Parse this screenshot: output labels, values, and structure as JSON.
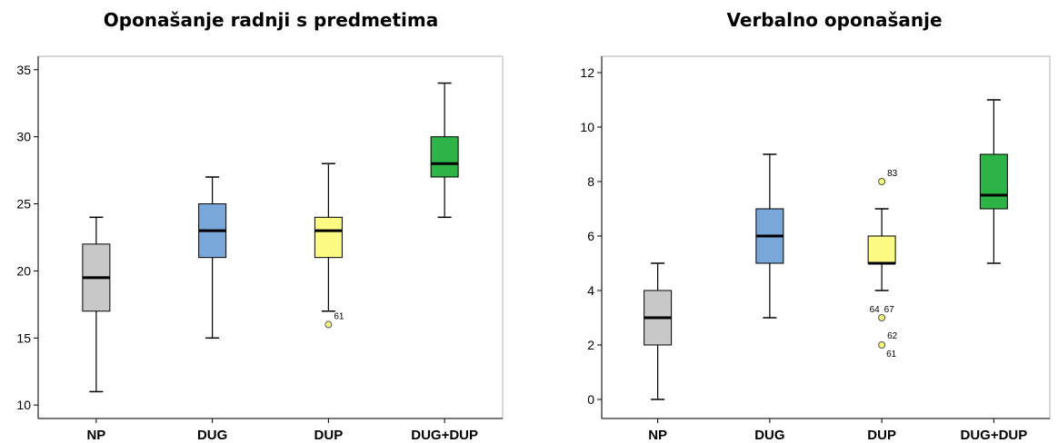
{
  "chart_data": [
    {
      "type": "boxplot",
      "title": "Oponašanje radnji s predmetima",
      "categories": [
        "NP",
        "DUG",
        "DUP",
        "DUG+DUP"
      ],
      "ylim": [
        9,
        36
      ],
      "yticks": [
        10,
        15,
        20,
        25,
        30,
        35
      ],
      "ytick_labels": [
        "10",
        "15",
        "20",
        "25",
        "30",
        "35"
      ],
      "grid": false,
      "boxes": [
        {
          "category": "NP",
          "min": 11,
          "q1": 17,
          "median": 19.5,
          "q3": 22,
          "max": 24,
          "color": "#c8c8c8",
          "outliers": []
        },
        {
          "category": "DUG",
          "min": 15,
          "q1": 21,
          "median": 23,
          "q3": 25,
          "max": 27,
          "color": "#79a7d9",
          "outliers": []
        },
        {
          "category": "DUP",
          "min": 17,
          "q1": 21,
          "median": 23,
          "q3": 24,
          "max": 28,
          "color": "#fbfb84",
          "outliers": [
            {
              "value": 16,
              "labels": [
                "61"
              ]
            }
          ]
        },
        {
          "category": "DUG+DUP",
          "min": 24,
          "q1": 27,
          "median": 28,
          "q3": 30,
          "max": 34,
          "color": "#2db346",
          "outliers": []
        }
      ]
    },
    {
      "type": "boxplot",
      "title": "Verbalno oponašanje",
      "categories": [
        "NP",
        "DUG",
        "DUP",
        "DUG+DUP"
      ],
      "ylim": [
        -0.7,
        12.6
      ],
      "yticks": [
        0,
        2,
        4,
        6,
        8,
        10,
        12
      ],
      "ytick_labels": [
        "0",
        "2",
        "4",
        "6",
        "8",
        "10",
        "12"
      ],
      "grid": false,
      "boxes": [
        {
          "category": "NP",
          "min": 0,
          "q1": 2,
          "median": 3,
          "q3": 4,
          "max": 5,
          "color": "#c8c8c8",
          "outliers": []
        },
        {
          "category": "DUG",
          "min": 3,
          "q1": 5,
          "median": 6,
          "q3": 7,
          "max": 9,
          "color": "#79a7d9",
          "outliers": []
        },
        {
          "category": "DUP",
          "min": 4,
          "q1": 5,
          "median": 5,
          "q3": 6,
          "max": 7,
          "color": "#fbfb84",
          "outliers": [
            {
              "value": 8,
              "labels": [
                "83"
              ]
            },
            {
              "value": 3,
              "labels": [
                "64",
                "67"
              ]
            },
            {
              "value": 2,
              "labels": [
                "62",
                "61"
              ]
            }
          ]
        },
        {
          "category": "DUG+DUP",
          "min": 5,
          "q1": 7,
          "median": 7.5,
          "q3": 9,
          "max": 11,
          "color": "#2db346",
          "outliers": []
        }
      ]
    }
  ]
}
